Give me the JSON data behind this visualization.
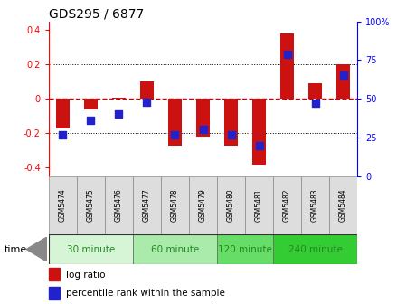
{
  "title": "GDS295 / 6877",
  "samples": [
    "GSM5474",
    "GSM5475",
    "GSM5476",
    "GSM5477",
    "GSM5478",
    "GSM5479",
    "GSM5480",
    "GSM5481",
    "GSM5482",
    "GSM5483",
    "GSM5484"
  ],
  "log_ratio": [
    -0.17,
    -0.06,
    0.005,
    0.1,
    -0.27,
    -0.22,
    -0.27,
    -0.38,
    0.38,
    0.09,
    0.2
  ],
  "percentile": [
    27,
    36,
    40,
    48,
    27,
    30,
    27,
    20,
    79,
    47,
    65
  ],
  "bar_color": "#cc1111",
  "dot_color": "#2222cc",
  "bg_color": "#ffffff",
  "plot_bg": "#ffffff",
  "ylim": [
    -0.45,
    0.45
  ],
  "y2lim": [
    0,
    100
  ],
  "yticks": [
    -0.4,
    -0.2,
    0.0,
    0.2,
    0.4
  ],
  "ytick_labels": [
    "-0.4",
    "-0.2",
    "0",
    "0.2",
    "0.4"
  ],
  "y2ticks": [
    0,
    25,
    50,
    75,
    100
  ],
  "y2labels": [
    "0",
    "25",
    "50",
    "75",
    "100%"
  ],
  "hline_zero_color": "#cc0000",
  "hline_grid_color": "#000000",
  "time_groups": [
    {
      "label": "30 minute",
      "start": 0,
      "end": 3,
      "color": "#d6f5d6"
    },
    {
      "label": "60 minute",
      "start": 3,
      "end": 6,
      "color": "#aaeaaa"
    },
    {
      "label": "120 minute",
      "start": 6,
      "end": 8,
      "color": "#66dd66"
    },
    {
      "label": "240 minute",
      "start": 8,
      "end": 11,
      "color": "#33cc33"
    }
  ],
  "time_label": "time",
  "legend_bar": "log ratio",
  "legend_dot": "percentile rank within the sample",
  "bar_width": 0.5,
  "dot_size": 30,
  "tick_label_fontsize": 7,
  "title_fontsize": 10,
  "label_fontsize": 7.5,
  "sample_box_color": "#dddddd",
  "sample_label_fontsize": 5.5,
  "time_label_fontsize": 8,
  "time_text_color": "#228822"
}
